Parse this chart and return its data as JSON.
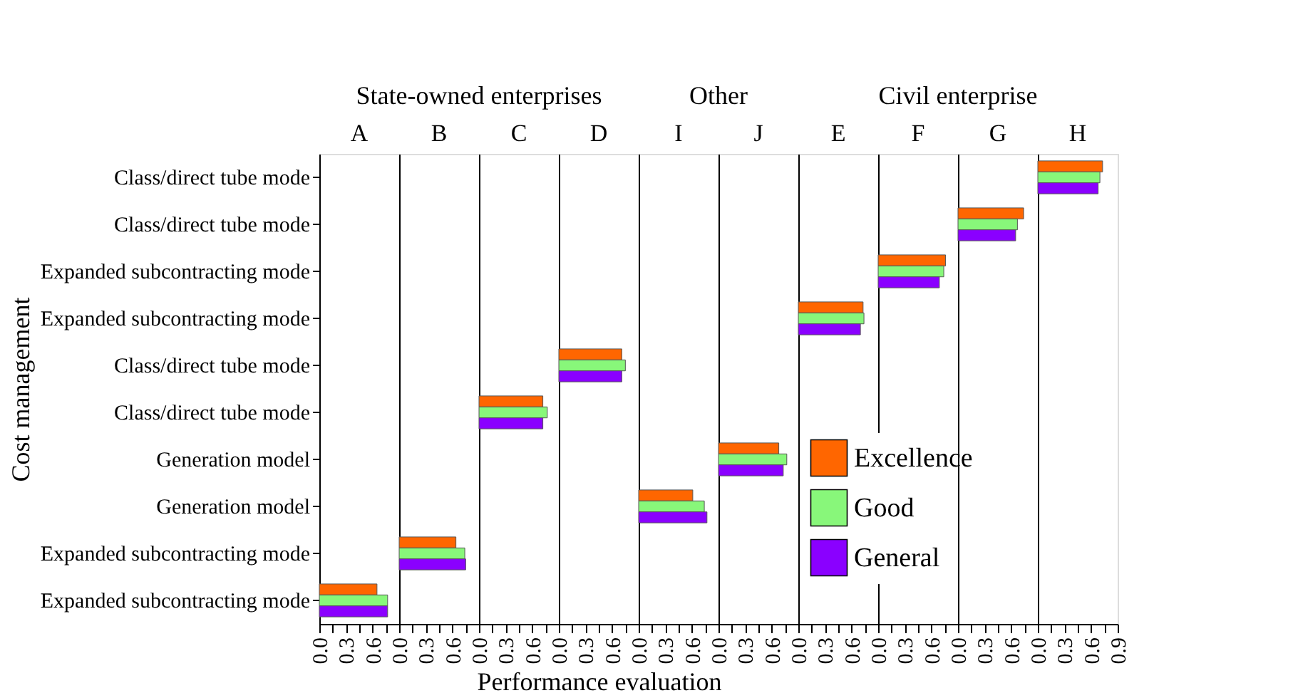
{
  "chart_data": [
    {
      "type": "bar",
      "orientation": "horizontal",
      "title": "A",
      "annotations": [
        "State-owned enterprises"
      ],
      "ylabel": "Cost management",
      "xlim": [
        0,
        0.9
      ],
      "xticks": [
        {
          "value": 0,
          "label": "0.0"
        },
        {
          "value": 0.15,
          "label": null
        },
        {
          "value": 0.3,
          "label": "0.3"
        },
        {
          "value": 0.45,
          "label": null
        },
        {
          "value": 0.6,
          "label": "0.6"
        },
        {
          "value": 0.75,
          "label": null
        },
        {
          "value": 0.9,
          "label": null
        }
      ],
      "categories": [
        "Class/direct tube mode",
        "Class/direct tube mode",
        "Expanded subcontracting mode",
        "Expanded subcontracting mode",
        "Class/direct tube mode",
        "Class/direct tube mode",
        "Generation model",
        "Generation model",
        "Expanded subcontracting mode",
        "Expanded subcontracting mode"
      ],
      "series": [
        {
          "color": "#ff6600",
          "values": [
            null,
            null,
            null,
            null,
            null,
            null,
            null,
            null,
            null,
            0.65
          ]
        },
        {
          "color": "#88f77a",
          "values": [
            null,
            null,
            null,
            null,
            null,
            null,
            null,
            null,
            null,
            0.77
          ]
        },
        {
          "color": "#8a00ff",
          "values": [
            null,
            null,
            null,
            null,
            null,
            null,
            null,
            null,
            null,
            0.77
          ]
        }
      ]
    },
    {
      "type": "bar",
      "orientation": "horizontal",
      "title": "B",
      "tick_labels": "x",
      "xlim": [
        0,
        0.9
      ],
      "xticks": [
        {
          "value": 0,
          "label": "0.0"
        },
        {
          "value": 0.15,
          "label": null
        },
        {
          "value": 0.3,
          "label": "0.3"
        },
        {
          "value": 0.45,
          "label": null
        },
        {
          "value": 0.6,
          "label": "0.6"
        },
        {
          "value": 0.75,
          "label": null
        },
        {
          "value": 0.9,
          "label": null
        }
      ],
      "categories": [
        null,
        null,
        null,
        null,
        null,
        null,
        null,
        null,
        null,
        null
      ],
      "series": [
        {
          "color": "#ff6600",
          "values": [
            null,
            null,
            null,
            null,
            null,
            null,
            null,
            null,
            0.64,
            null
          ]
        },
        {
          "color": "#88f77a",
          "values": [
            null,
            null,
            null,
            null,
            null,
            null,
            null,
            null,
            0.74,
            null
          ]
        },
        {
          "color": "#8a00ff",
          "values": [
            null,
            null,
            null,
            null,
            null,
            null,
            null,
            null,
            0.75,
            null
          ]
        }
      ]
    },
    {
      "type": "bar",
      "orientation": "horizontal",
      "title": "C",
      "tick_labels": "x",
      "xlim": [
        0,
        0.9
      ],
      "xticks": [
        {
          "value": 0,
          "label": "0.0"
        },
        {
          "value": 0.15,
          "label": null
        },
        {
          "value": 0.3,
          "label": "0.3"
        },
        {
          "value": 0.45,
          "label": null
        },
        {
          "value": 0.6,
          "label": "0.6"
        },
        {
          "value": 0.75,
          "label": null
        },
        {
          "value": 0.9,
          "label": null
        }
      ],
      "categories": [
        null,
        null,
        null,
        null,
        null,
        null,
        null,
        null,
        null,
        null
      ],
      "series": [
        {
          "color": "#ff6600",
          "values": [
            null,
            null,
            null,
            null,
            null,
            0.72,
            null,
            null,
            null,
            null
          ]
        },
        {
          "color": "#88f77a",
          "values": [
            null,
            null,
            null,
            null,
            null,
            0.77,
            null,
            null,
            null,
            null
          ]
        },
        {
          "color": "#8a00ff",
          "values": [
            null,
            null,
            null,
            null,
            null,
            0.72,
            null,
            null,
            null,
            null
          ]
        }
      ]
    },
    {
      "type": "bar",
      "orientation": "horizontal",
      "title": "D",
      "tick_labels": "x",
      "xlabel": "Performance evaluation",
      "xlim": [
        0,
        0.9
      ],
      "xticks": [
        {
          "value": 0,
          "label": "0.0"
        },
        {
          "value": 0.15,
          "label": null
        },
        {
          "value": 0.3,
          "label": "0.3"
        },
        {
          "value": 0.45,
          "label": null
        },
        {
          "value": 0.6,
          "label": "0.6"
        },
        {
          "value": 0.75,
          "label": null
        },
        {
          "value": 0.9,
          "label": null
        }
      ],
      "categories": [
        null,
        null,
        null,
        null,
        null,
        null,
        null,
        null,
        null,
        null
      ],
      "series": [
        {
          "color": "#ff6600",
          "values": [
            null,
            null,
            null,
            null,
            0.71,
            null,
            null,
            null,
            null,
            null
          ]
        },
        {
          "color": "#88f77a",
          "values": [
            null,
            null,
            null,
            null,
            0.75,
            null,
            null,
            null,
            null,
            null
          ]
        },
        {
          "color": "#8a00ff",
          "values": [
            null,
            null,
            null,
            null,
            0.71,
            null,
            null,
            null,
            null,
            null
          ]
        }
      ]
    },
    {
      "type": "bar",
      "orientation": "horizontal",
      "title": "I",
      "annotations": [
        "Other"
      ],
      "tick_labels": "x",
      "xlim": [
        0,
        0.9
      ],
      "xticks": [
        {
          "value": 0,
          "label": "0.0"
        },
        {
          "value": 0.15,
          "label": null
        },
        {
          "value": 0.3,
          "label": "0.3"
        },
        {
          "value": 0.45,
          "label": null
        },
        {
          "value": 0.6,
          "label": "0.6"
        },
        {
          "value": 0.75,
          "label": null
        },
        {
          "value": 0.9,
          "label": null
        }
      ],
      "categories": [
        null,
        null,
        null,
        null,
        null,
        null,
        null,
        null,
        null,
        null
      ],
      "series": [
        {
          "color": "#ff6600",
          "values": [
            null,
            null,
            null,
            null,
            null,
            null,
            null,
            0.61,
            null,
            null
          ]
        },
        {
          "color": "#88f77a",
          "values": [
            null,
            null,
            null,
            null,
            null,
            null,
            null,
            0.74,
            null,
            null
          ]
        },
        {
          "color": "#8a00ff",
          "values": [
            null,
            null,
            null,
            null,
            null,
            null,
            null,
            0.77,
            null,
            null
          ]
        }
      ]
    },
    {
      "type": "bar",
      "orientation": "horizontal",
      "title": "J",
      "tick_labels": "x",
      "xlim": [
        0,
        0.9
      ],
      "xticks": [
        {
          "value": 0,
          "label": "0.0"
        },
        {
          "value": 0.15,
          "label": null
        },
        {
          "value": 0.3,
          "label": "0.3"
        },
        {
          "value": 0.45,
          "label": null
        },
        {
          "value": 0.6,
          "label": "0.6"
        },
        {
          "value": 0.75,
          "label": null
        },
        {
          "value": 0.9,
          "label": null
        }
      ],
      "categories": [
        null,
        null,
        null,
        null,
        null,
        null,
        null,
        null,
        null,
        null
      ],
      "series": [
        {
          "color": "#ff6600",
          "values": [
            null,
            null,
            null,
            null,
            null,
            null,
            0.68,
            null,
            null,
            null
          ]
        },
        {
          "color": "#88f77a",
          "values": [
            null,
            null,
            null,
            null,
            null,
            null,
            0.77,
            null,
            null,
            null
          ]
        },
        {
          "color": "#8a00ff",
          "values": [
            null,
            null,
            null,
            null,
            null,
            null,
            0.73,
            null,
            null,
            null
          ]
        }
      ]
    },
    {
      "type": "bar",
      "orientation": "horizontal",
      "title": "E",
      "annotations": [
        "Civil enterprise"
      ],
      "tick_labels": "x",
      "xlim": [
        0,
        0.9
      ],
      "xticks": [
        {
          "value": 0,
          "label": "0.0"
        },
        {
          "value": 0.15,
          "label": null
        },
        {
          "value": 0.3,
          "label": "0.3"
        },
        {
          "value": 0.45,
          "label": null
        },
        {
          "value": 0.6,
          "label": "0.6"
        },
        {
          "value": 0.75,
          "label": null
        },
        {
          "value": 0.9,
          "label": null
        }
      ],
      "categories": [
        null,
        null,
        null,
        null,
        null,
        null,
        null,
        null,
        null,
        null
      ],
      "series": [
        {
          "color": "#ff6600",
          "values": [
            null,
            null,
            null,
            0.73,
            null,
            null,
            null,
            null,
            null,
            null
          ]
        },
        {
          "color": "#88f77a",
          "values": [
            null,
            null,
            null,
            0.74,
            null,
            null,
            null,
            null,
            null,
            null
          ]
        },
        {
          "color": "#8a00ff",
          "values": [
            null,
            null,
            null,
            0.7,
            null,
            null,
            null,
            null,
            null,
            null
          ]
        }
      ]
    },
    {
      "type": "bar",
      "orientation": "horizontal",
      "title": "F",
      "tick_labels": "x",
      "legend": "bottom",
      "xlim": [
        0,
        0.9
      ],
      "xticks": [
        {
          "value": 0,
          "label": "0.0"
        },
        {
          "value": 0.15,
          "label": null
        },
        {
          "value": 0.3,
          "label": "0.3"
        },
        {
          "value": 0.45,
          "label": null
        },
        {
          "value": 0.6,
          "label": "0.6"
        },
        {
          "value": 0.75,
          "label": null
        },
        {
          "value": 0.9,
          "label": null
        }
      ],
      "categories": [
        null,
        null,
        null,
        null,
        null,
        null,
        null,
        null,
        null,
        null
      ],
      "series": [
        {
          "name": "Excellence",
          "color": "#ff6600",
          "values": [
            null,
            null,
            0.76,
            null,
            null,
            null,
            null,
            null,
            null,
            null
          ]
        },
        {
          "name": "Good",
          "color": "#88f77a",
          "values": [
            null,
            null,
            0.74,
            null,
            null,
            null,
            null,
            null,
            null,
            null
          ]
        },
        {
          "name": "General",
          "color": "#8a00ff",
          "values": [
            null,
            null,
            0.69,
            null,
            null,
            null,
            null,
            null,
            null,
            null
          ]
        }
      ]
    },
    {
      "type": "bar",
      "orientation": "horizontal",
      "title": "G",
      "tick_labels": "x",
      "xlim": [
        0,
        0.9
      ],
      "xticks": [
        {
          "value": 0,
          "label": "0.0"
        },
        {
          "value": 0.15,
          "label": null
        },
        {
          "value": 0.3,
          "label": "0.3"
        },
        {
          "value": 0.45,
          "label": null
        },
        {
          "value": 0.6,
          "label": "0.6"
        },
        {
          "value": 0.75,
          "label": null
        },
        {
          "value": 0.9,
          "label": null
        }
      ],
      "categories": [
        null,
        null,
        null,
        null,
        null,
        null,
        null,
        null,
        null,
        null
      ],
      "series": [
        {
          "color": "#ff6600",
          "values": [
            null,
            0.74,
            null,
            null,
            null,
            null,
            null,
            null,
            null,
            null
          ]
        },
        {
          "color": "#88f77a",
          "values": [
            null,
            0.67,
            null,
            null,
            null,
            null,
            null,
            null,
            null,
            null
          ]
        },
        {
          "color": "#8a00ff",
          "values": [
            null,
            0.65,
            null,
            null,
            null,
            null,
            null,
            null,
            null,
            null
          ]
        }
      ]
    },
    {
      "type": "bar",
      "orientation": "horizontal",
      "title": "H",
      "tick_labels": "x",
      "xlim": [
        0,
        0.9
      ],
      "xticks": [
        {
          "value": 0,
          "label": "0.0"
        },
        {
          "value": 0.15,
          "label": null
        },
        {
          "value": 0.3,
          "label": "0.3"
        },
        {
          "value": 0.45,
          "label": null
        },
        {
          "value": 0.6,
          "label": "0.6"
        },
        {
          "value": 0.75,
          "label": null
        },
        {
          "value": 0.9,
          "label": "0.9"
        }
      ],
      "categories": [
        null,
        null,
        null,
        null,
        null,
        null,
        null,
        null,
        null,
        null
      ],
      "series": [
        {
          "color": "#ff6600",
          "values": [
            0.73,
            null,
            null,
            null,
            null,
            null,
            null,
            null,
            null,
            null
          ]
        },
        {
          "color": "#88f77a",
          "values": [
            0.7,
            null,
            null,
            null,
            null,
            null,
            null,
            null,
            null,
            null
          ]
        },
        {
          "color": "#8a00ff",
          "values": [
            0.68,
            null,
            null,
            null,
            null,
            null,
            null,
            null,
            null,
            null
          ]
        }
      ]
    }
  ]
}
